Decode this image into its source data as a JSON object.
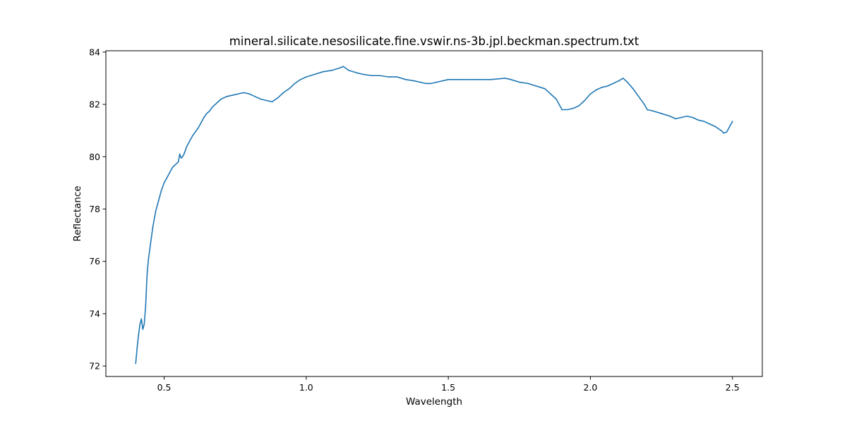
{
  "chart_data": {
    "type": "line",
    "title": "mineral.silicate.nesosilicate.fine.vswir.ns-3b.jpl.beckman.spectrum.txt",
    "xlabel": "Wavelength",
    "ylabel": "Reflectance",
    "xlim": [
      0.295,
      2.605
    ],
    "ylim": [
      71.6,
      84.05
    ],
    "grid": false,
    "xticks": [
      0.5,
      1.0,
      1.5,
      2.0,
      2.5
    ],
    "xtick_labels": [
      "0.5",
      "1.0",
      "1.5",
      "2.0",
      "2.5"
    ],
    "yticks": [
      72,
      74,
      76,
      78,
      80,
      82,
      84
    ],
    "ytick_labels": [
      "72",
      "74",
      "76",
      "78",
      "80",
      "82",
      "84"
    ],
    "line_color": "#1f77b4",
    "series": [
      {
        "x": [
          0.4,
          0.405,
          0.41,
          0.415,
          0.42,
          0.425,
          0.43,
          0.435,
          0.44,
          0.445,
          0.45,
          0.455,
          0.46,
          0.465,
          0.47,
          0.48,
          0.49,
          0.5,
          0.51,
          0.52,
          0.53,
          0.54,
          0.55,
          0.555,
          0.56,
          0.565,
          0.57,
          0.58,
          0.59,
          0.6,
          0.61,
          0.62,
          0.63,
          0.64,
          0.65,
          0.66,
          0.67,
          0.68,
          0.69,
          0.7,
          0.71,
          0.72,
          0.74,
          0.76,
          0.78,
          0.8,
          0.82,
          0.84,
          0.86,
          0.88,
          0.9,
          0.92,
          0.94,
          0.96,
          0.98,
          1.0,
          1.03,
          1.06,
          1.09,
          1.12,
          1.13,
          1.15,
          1.18,
          1.2,
          1.23,
          1.26,
          1.29,
          1.32,
          1.35,
          1.38,
          1.4,
          1.42,
          1.44,
          1.46,
          1.5,
          1.55,
          1.6,
          1.65,
          1.7,
          1.72,
          1.75,
          1.78,
          1.81,
          1.84,
          1.86,
          1.88,
          1.89,
          1.9,
          1.92,
          1.94,
          1.96,
          1.98,
          2.0,
          2.02,
          2.04,
          2.06,
          2.08,
          2.1,
          2.115,
          2.13,
          2.15,
          2.17,
          2.19,
          2.2,
          2.22,
          2.25,
          2.28,
          2.3,
          2.32,
          2.34,
          2.36,
          2.38,
          2.4,
          2.42,
          2.44,
          2.46,
          2.47,
          2.48,
          2.49,
          2.5
        ],
        "y": [
          72.1,
          72.7,
          73.2,
          73.6,
          73.8,
          73.4,
          73.6,
          74.3,
          75.5,
          76.1,
          76.5,
          76.9,
          77.3,
          77.6,
          77.9,
          78.3,
          78.7,
          79.0,
          79.2,
          79.4,
          79.6,
          79.7,
          79.8,
          80.1,
          79.95,
          80.0,
          80.1,
          80.4,
          80.6,
          80.8,
          80.95,
          81.1,
          81.3,
          81.5,
          81.65,
          81.75,
          81.9,
          82.0,
          82.1,
          82.2,
          82.25,
          82.3,
          82.35,
          82.4,
          82.45,
          82.4,
          82.3,
          82.2,
          82.15,
          82.1,
          82.25,
          82.45,
          82.6,
          82.8,
          82.95,
          83.05,
          83.15,
          83.25,
          83.3,
          83.4,
          83.45,
          83.3,
          83.2,
          83.15,
          83.1,
          83.1,
          83.05,
          83.05,
          82.95,
          82.9,
          82.85,
          82.8,
          82.8,
          82.85,
          82.95,
          82.95,
          82.95,
          82.95,
          83.0,
          82.95,
          82.85,
          82.8,
          82.7,
          82.6,
          82.4,
          82.2,
          82.0,
          81.8,
          81.8,
          81.85,
          81.95,
          82.15,
          82.4,
          82.55,
          82.65,
          82.7,
          82.8,
          82.9,
          83.0,
          82.85,
          82.6,
          82.3,
          82.0,
          81.8,
          81.75,
          81.65,
          81.55,
          81.45,
          81.5,
          81.55,
          81.5,
          81.4,
          81.35,
          81.25,
          81.15,
          81.0,
          80.9,
          80.95,
          81.15,
          81.35
        ]
      }
    ]
  }
}
